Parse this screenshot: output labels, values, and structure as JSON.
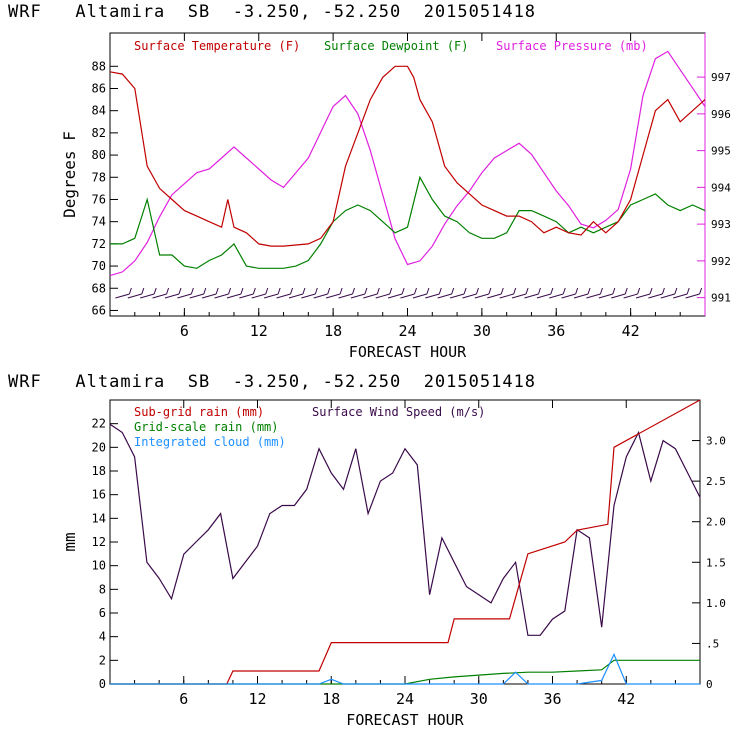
{
  "chart_data": [
    {
      "type": "line",
      "title": "WRF   Altamira  SB  -3.250, -52.250  2015051418",
      "xlabel": "FORECAST HOUR",
      "ylabel": "Degrees F",
      "xlim": [
        0,
        48
      ],
      "xticks": [
        "6",
        "12",
        "18",
        "24",
        "30",
        "36",
        "42"
      ],
      "ylim_left": [
        65.5,
        91
      ],
      "yticks_left": [
        "66",
        "68",
        "70",
        "72",
        "74",
        "76",
        "78",
        "80",
        "82",
        "84",
        "86",
        "88"
      ],
      "ylim_right": [
        990.5,
        998.2
      ],
      "yticks_right": [
        "991",
        "992",
        "993",
        "994",
        "995",
        "996",
        "997"
      ],
      "legend": [
        "Surface Temperature (F)",
        "Surface Dewpoint (F)",
        "Surface Pressure (mb)"
      ],
      "colors": {
        "temperature": "#c00000",
        "dewpoint": "#008000",
        "pressure": "#e020e0",
        "wind": "#3a0a4a"
      },
      "series": [
        {
          "name": "Surface Temperature (F)",
          "axis": "left",
          "x": [
            0,
            1,
            2,
            3,
            4,
            5,
            6,
            7,
            8,
            9,
            9.5,
            10,
            11,
            12,
            13,
            14,
            15,
            16,
            17,
            18,
            19,
            20,
            21,
            22,
            23,
            24,
            24.5,
            25,
            26,
            27,
            28,
            29,
            30,
            31,
            32,
            33,
            34,
            35,
            36,
            37,
            38,
            39,
            40,
            41,
            42,
            43,
            44,
            45,
            46,
            47,
            48
          ],
          "values": [
            87.5,
            87.3,
            86,
            79,
            77,
            76,
            75,
            74.5,
            74,
            73.5,
            76,
            73.5,
            73,
            72,
            71.8,
            71.8,
            71.9,
            72,
            72.5,
            74,
            79,
            82,
            85,
            87,
            88,
            88,
            87,
            85,
            83,
            79,
            77.5,
            76.5,
            75.5,
            75,
            74.5,
            74.5,
            74,
            73,
            73.5,
            73,
            72.8,
            74,
            73,
            74,
            76,
            80,
            84,
            85,
            83,
            84,
            85
          ]
        },
        {
          "name": "Surface Dewpoint (F)",
          "axis": "left",
          "x": [
            0,
            1,
            2,
            3,
            4,
            5,
            6,
            7,
            8,
            9,
            10,
            11,
            12,
            13,
            14,
            15,
            16,
            17,
            18,
            19,
            20,
            21,
            22,
            23,
            24,
            25,
            26,
            27,
            28,
            29,
            30,
            31,
            32,
            33,
            34,
            35,
            36,
            37,
            38,
            39,
            40,
            41,
            42,
            43,
            44,
            45,
            46,
            47,
            48
          ],
          "values": [
            72,
            72,
            72.5,
            76,
            71,
            71,
            70,
            69.8,
            70.5,
            71,
            72,
            70,
            69.8,
            69.8,
            69.8,
            70,
            70.5,
            72,
            74,
            75,
            75.5,
            75,
            74,
            73,
            73.5,
            78,
            76,
            74.5,
            74,
            73,
            72.5,
            72.5,
            73,
            75,
            75,
            74.5,
            74,
            73,
            73.5,
            73,
            73.5,
            74,
            75.5,
            76,
            76.5,
            75.5,
            75,
            75.5,
            75
          ]
        },
        {
          "name": "Surface Pressure (mb)",
          "axis": "right",
          "x": [
            0,
            1,
            2,
            3,
            4,
            5,
            6,
            7,
            8,
            9,
            10,
            11,
            12,
            13,
            14,
            15,
            16,
            17,
            18,
            19,
            20,
            21,
            22,
            23,
            24,
            25,
            26,
            27,
            28,
            29,
            30,
            31,
            32,
            33,
            34,
            35,
            36,
            37,
            38,
            39,
            40,
            41,
            42,
            43,
            44,
            45,
            46,
            47,
            48
          ],
          "values": [
            991.6,
            991.7,
            992,
            992.5,
            993.2,
            993.8,
            994.1,
            994.4,
            994.5,
            994.8,
            995.1,
            994.8,
            994.5,
            994.2,
            994,
            994.4,
            994.8,
            995.5,
            996.2,
            996.5,
            996,
            995,
            993.8,
            992.6,
            991.9,
            992,
            992.4,
            993,
            993.5,
            993.9,
            994.4,
            994.8,
            995,
            995.2,
            994.9,
            994.4,
            993.9,
            993.5,
            993,
            992.9,
            993.1,
            993.4,
            994.5,
            996.5,
            997.5,
            997.7,
            997.2,
            996.7,
            996.2
          ]
        }
      ],
      "wind_barbs": {
        "hours": [
          1,
          2,
          3,
          4,
          5,
          6,
          7,
          8,
          9,
          10,
          11,
          12,
          13,
          14,
          15,
          16,
          17,
          18,
          19,
          20,
          21,
          22,
          23,
          24,
          25,
          26,
          27,
          28,
          29,
          30,
          31,
          32,
          33,
          34,
          35,
          36,
          37,
          38,
          39,
          40,
          41,
          42,
          43,
          44,
          45,
          46,
          47
        ]
      }
    },
    {
      "type": "line",
      "title": "WRF   Altamira  SB  -3.250, -52.250  2015051418",
      "xlabel": "FORECAST HOUR",
      "ylabel": "mm",
      "xlim": [
        0,
        48
      ],
      "xticks": [
        "6",
        "12",
        "18",
        "24",
        "30",
        "36",
        "42"
      ],
      "ylim_left": [
        0,
        24
      ],
      "yticks_left": [
        "0",
        "2",
        "4",
        "6",
        "8",
        "10",
        "12",
        "14",
        "16",
        "18",
        "20",
        "22"
      ],
      "ylim_right": [
        0,
        3.5
      ],
      "yticks_right": [
        "0",
        ".5",
        "1.0",
        "1.5",
        "2.0",
        "2.5",
        "3.0"
      ],
      "legend": [
        "Sub-grid rain (mm)",
        "Grid-scale rain (mm)",
        "Integrated cloud (mm)",
        "Surface Wind Speed (m/s)"
      ],
      "colors": {
        "subgrid": "#c00000",
        "gridscale": "#008000",
        "cloud": "#1e90ff",
        "wind": "#3a0a4a"
      },
      "series": [
        {
          "name": "Sub-grid rain (mm)",
          "axis": "left",
          "x": [
            0,
            9.5,
            10,
            17,
            18,
            27.5,
            28,
            32.5,
            34,
            37,
            38,
            40.5,
            41,
            48
          ],
          "values": [
            0,
            0,
            1.1,
            1.1,
            3.5,
            3.5,
            5.5,
            5.5,
            11,
            12,
            13,
            13.5,
            20,
            24
          ]
        },
        {
          "name": "Grid-scale rain (mm)",
          "axis": "left",
          "x": [
            0,
            24,
            26,
            28,
            32,
            34,
            36,
            38,
            40,
            41,
            48
          ],
          "values": [
            0,
            0,
            0.4,
            0.6,
            0.9,
            1,
            1,
            1.1,
            1.2,
            2,
            2
          ]
        },
        {
          "name": "Integrated cloud (mm)",
          "axis": "left",
          "x": [
            0,
            17,
            18,
            19,
            24,
            32,
            33,
            34,
            38,
            40,
            41,
            42,
            48
          ],
          "values": [
            0,
            0,
            0.4,
            0,
            0,
            0,
            1,
            0,
            0,
            0.3,
            2.5,
            0,
            0
          ]
        },
        {
          "name": "Surface Wind Speed (m/s)",
          "axis": "right",
          "x": [
            0,
            1,
            2,
            3,
            4,
            5,
            6,
            7,
            8,
            9,
            10,
            11,
            12,
            13,
            14,
            15,
            16,
            17,
            18,
            19,
            20,
            21,
            22,
            23,
            24,
            25,
            26,
            27,
            28,
            29,
            30,
            31,
            32,
            33,
            34,
            35,
            36,
            37,
            38,
            39,
            40,
            41,
            42,
            43,
            44,
            45,
            46,
            47,
            48
          ],
          "values": [
            3.2,
            3.1,
            2.8,
            1.5,
            1.3,
            1.05,
            1.6,
            1.75,
            1.9,
            2.1,
            1.3,
            1.5,
            1.7,
            2.1,
            2.2,
            2.2,
            2.4,
            2.9,
            2.6,
            2.4,
            2.9,
            2.1,
            2.5,
            2.6,
            2.9,
            2.7,
            1.1,
            1.8,
            1.5,
            1.2,
            1.1,
            1,
            1.3,
            1.5,
            0.6,
            0.6,
            0.8,
            0.9,
            1.9,
            1.8,
            0.7,
            2.2,
            2.8,
            3.1,
            2.5,
            3,
            2.9,
            2.6,
            2.3
          ]
        }
      ]
    }
  ]
}
